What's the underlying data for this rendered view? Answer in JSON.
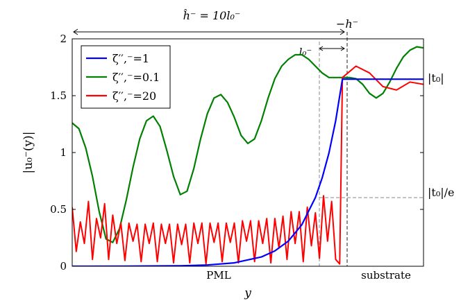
{
  "chart_data": {
    "type": "line",
    "xlabel": "y",
    "ylabel": "|u₀⁻(y)|",
    "xlim": [
      -10,
      3
    ],
    "ylim": [
      0,
      2
    ],
    "grid": false,
    "legend_position": "top-left",
    "y_ticks": [
      {
        "value": 0,
        "label": "0"
      },
      {
        "value": 0.5,
        "label": "0.5"
      },
      {
        "value": 1,
        "label": "1"
      },
      {
        "value": 1.5,
        "label": "1.5"
      },
      {
        "value": 2,
        "label": "2"
      }
    ],
    "series": [
      {
        "name": "ζ′′,⁻=1",
        "color": "#0000ff",
        "x": [
          -10,
          -8,
          -6,
          -5,
          -4,
          -3,
          -2.5,
          -2,
          -1.5,
          -1,
          -0.75,
          -0.5,
          -0.25,
          0,
          3
        ],
        "y": [
          0,
          0.0005,
          0.004,
          0.011,
          0.03,
          0.082,
          0.135,
          0.222,
          0.366,
          0.604,
          0.776,
          0.996,
          1.28,
          1.645,
          1.645
        ]
      },
      {
        "name": "ζ′′,⁻=0.1",
        "color": "#008000",
        "x": [
          -10,
          -9.75,
          -9.5,
          -9.25,
          -9.0,
          -8.75,
          -8.5,
          -8.25,
          -8.0,
          -7.75,
          -7.5,
          -7.25,
          -7.0,
          -6.75,
          -6.5,
          -6.25,
          -6.0,
          -5.75,
          -5.5,
          -5.25,
          -5.0,
          -4.75,
          -4.5,
          -4.25,
          -4.0,
          -3.75,
          -3.5,
          -3.25,
          -3.0,
          -2.75,
          -2.5,
          -2.25,
          -2.0,
          -1.75,
          -1.5,
          -1.25,
          -1.0,
          -0.75,
          -0.5,
          -0.25,
          0.0,
          0.25,
          0.5,
          0.75,
          1.0,
          1.25,
          1.5,
          1.75,
          2.0,
          2.25,
          2.5,
          2.75,
          3.0
        ],
        "y": [
          1.26,
          1.21,
          1.04,
          0.79,
          0.48,
          0.24,
          0.21,
          0.33,
          0.58,
          0.87,
          1.12,
          1.28,
          1.32,
          1.23,
          1.02,
          0.79,
          0.63,
          0.66,
          0.86,
          1.12,
          1.34,
          1.48,
          1.51,
          1.44,
          1.31,
          1.15,
          1.08,
          1.12,
          1.28,
          1.48,
          1.65,
          1.76,
          1.82,
          1.86,
          1.86,
          1.82,
          1.76,
          1.7,
          1.66,
          1.66,
          1.66,
          1.66,
          1.65,
          1.6,
          1.52,
          1.48,
          1.52,
          1.62,
          1.74,
          1.84,
          1.9,
          1.93,
          1.92
        ]
      },
      {
        "name": "ζ′′,⁻=20",
        "color": "#ff0000",
        "x": [
          -10,
          -9.85,
          -9.7,
          -9.55,
          -9.4,
          -9.25,
          -9.1,
          -8.95,
          -8.8,
          -8.65,
          -8.5,
          -8.35,
          -8.2,
          -8.05,
          -7.9,
          -7.75,
          -7.6,
          -7.45,
          -7.3,
          -7.15,
          -7.0,
          -6.85,
          -6.7,
          -6.55,
          -6.4,
          -6.25,
          -6.1,
          -5.95,
          -5.8,
          -5.65,
          -5.5,
          -5.35,
          -5.2,
          -5.05,
          -4.9,
          -4.75,
          -4.6,
          -4.45,
          -4.3,
          -4.15,
          -4.0,
          -3.85,
          -3.7,
          -3.55,
          -3.4,
          -3.25,
          -3.1,
          -2.95,
          -2.8,
          -2.65,
          -2.5,
          -2.35,
          -2.2,
          -2.05,
          -1.9,
          -1.75,
          -1.6,
          -1.45,
          -1.3,
          -1.15,
          -1.0,
          -0.85,
          -0.7,
          -0.55,
          -0.4,
          -0.25,
          -0.1,
          0.0,
          0.5,
          1.0,
          1.5,
          2.0,
          2.5,
          3.0
        ],
        "y": [
          0.52,
          0.13,
          0.39,
          0.2,
          0.57,
          0.06,
          0.42,
          0.25,
          0.55,
          0.06,
          0.45,
          0.2,
          0.38,
          0.05,
          0.38,
          0.22,
          0.37,
          0.04,
          0.37,
          0.2,
          0.38,
          0.04,
          0.37,
          0.2,
          0.37,
          0.03,
          0.37,
          0.19,
          0.37,
          0.03,
          0.38,
          0.2,
          0.38,
          0.02,
          0.38,
          0.21,
          0.38,
          0.04,
          0.38,
          0.21,
          0.38,
          0.03,
          0.4,
          0.22,
          0.4,
          0.04,
          0.4,
          0.2,
          0.42,
          0.03,
          0.42,
          0.16,
          0.44,
          0.06,
          0.48,
          0.2,
          0.48,
          0.04,
          0.52,
          0.18,
          0.47,
          0.07,
          0.62,
          0.22,
          0.57,
          0.06,
          0.02,
          1.66,
          1.76,
          1.7,
          1.58,
          1.55,
          1.62,
          1.6
        ]
      }
    ],
    "annotations": {
      "top_width": "ĥ⁻ = 10l₀⁻",
      "decay_length": "l₀⁻",
      "interface": "−h⁻",
      "level_t0": "|t₀|",
      "level_t0_e": "|t₀|/e",
      "region_left": "PML",
      "region_right": "substrate"
    }
  }
}
